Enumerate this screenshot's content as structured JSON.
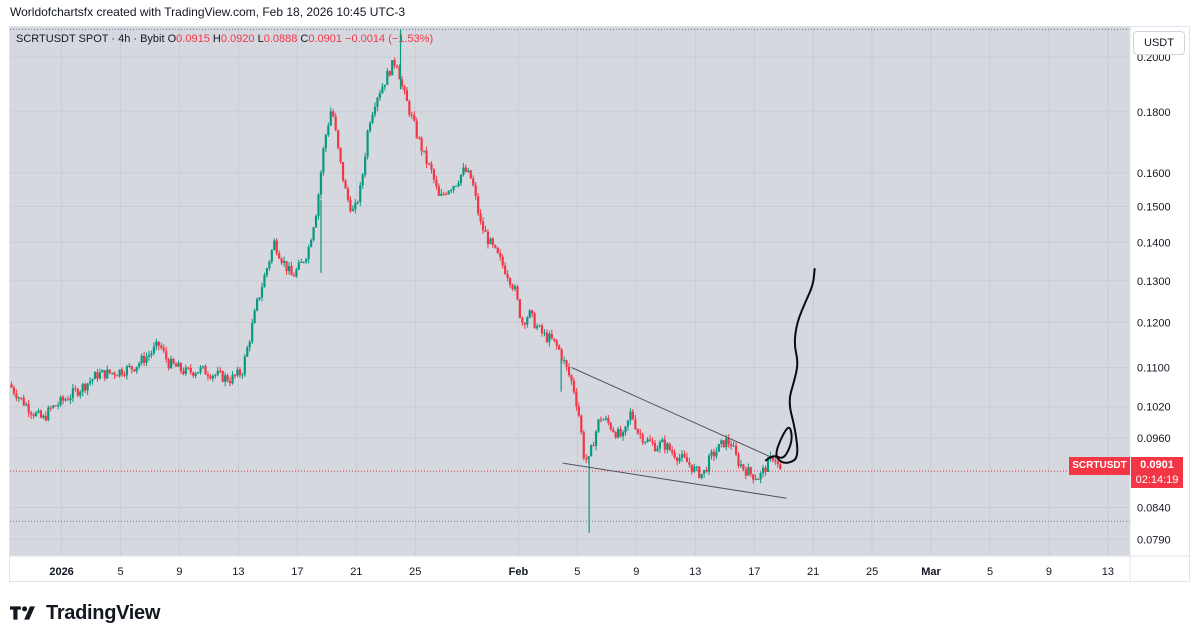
{
  "attribution": "Worldofchartsfx created with TradingView.com, Feb 18, 2026 10:45 UTC-3",
  "legend": {
    "symbol": "SCRTUSDT SPOT · 4h · Bybit",
    "o_label": "O",
    "o_value": "0.0915",
    "h_label": "H",
    "h_value": "0.0920",
    "l_label": "L",
    "l_value": "0.0888",
    "c_label": "C",
    "c_value": "0.0901",
    "change": "−0.0014 (−1.53%)"
  },
  "currency_button": "USDT",
  "last_price": {
    "symbol_tag": "SCRTUSDT",
    "price": "0.0901",
    "countdown": "02:14:19"
  },
  "logo": {
    "text": "TradingView",
    "icon": "tradingview-logo-icon"
  },
  "colors": {
    "up": "#089981",
    "down": "#f23645",
    "grid": "#e9ecf2",
    "text": "#131722"
  },
  "chart_data": {
    "type": "candlestick",
    "title": "SCRTUSDT SPOT · 4h · Bybit",
    "scale": "log",
    "ylim": [
      0.0765,
      0.212
    ],
    "y_ticks": [
      "0.2000",
      "0.1800",
      "0.1600",
      "0.1500",
      "0.1400",
      "0.1300",
      "0.1200",
      "0.1100",
      "0.1020",
      "0.0960",
      "0.0840",
      "0.0790"
    ],
    "x_range_days": [
      -3.5,
      72.5
    ],
    "x_ticks": [
      {
        "day": 0,
        "label": "2026"
      },
      {
        "day": 4,
        "label": "5"
      },
      {
        "day": 8,
        "label": "9"
      },
      {
        "day": 12,
        "label": "13"
      },
      {
        "day": 16,
        "label": "17"
      },
      {
        "day": 20,
        "label": "21"
      },
      {
        "day": 24,
        "label": "25"
      },
      {
        "day": 31,
        "label": "Feb"
      },
      {
        "day": 35,
        "label": "5"
      },
      {
        "day": 39,
        "label": "9"
      },
      {
        "day": 43,
        "label": "13"
      },
      {
        "day": 47,
        "label": "17"
      },
      {
        "day": 51,
        "label": "21"
      },
      {
        "day": 55,
        "label": "25"
      },
      {
        "day": 59,
        "label": "Mar"
      },
      {
        "day": 63,
        "label": "5"
      },
      {
        "day": 67,
        "label": "9"
      },
      {
        "day": 71,
        "label": "13"
      }
    ],
    "anchors": [
      [
        -3.4,
        0.1065
      ],
      [
        -2.6,
        0.1035
      ],
      [
        -1.8,
        0.101
      ],
      [
        -1.1,
        0.0995
      ],
      [
        -0.6,
        0.1015
      ],
      [
        0.4,
        0.1035
      ],
      [
        1.6,
        0.106
      ],
      [
        2.6,
        0.1085
      ],
      [
        3.8,
        0.109
      ],
      [
        5.0,
        0.11
      ],
      [
        6.0,
        0.1125
      ],
      [
        6.8,
        0.115
      ],
      [
        7.4,
        0.111
      ],
      [
        8.6,
        0.109
      ],
      [
        9.6,
        0.1095
      ],
      [
        10.6,
        0.1085
      ],
      [
        11.6,
        0.1075
      ],
      [
        12.4,
        0.109
      ],
      [
        12.9,
        0.116
      ],
      [
        13.4,
        0.124
      ],
      [
        14.0,
        0.132
      ],
      [
        14.6,
        0.14
      ],
      [
        15.2,
        0.135
      ],
      [
        15.8,
        0.131
      ],
      [
        16.4,
        0.134
      ],
      [
        16.9,
        0.138
      ],
      [
        17.5,
        0.15
      ],
      [
        18.0,
        0.17
      ],
      [
        18.5,
        0.182
      ],
      [
        19.0,
        0.165
      ],
      [
        19.5,
        0.153
      ],
      [
        20.0,
        0.148
      ],
      [
        20.5,
        0.156
      ],
      [
        21.0,
        0.176
      ],
      [
        21.5,
        0.185
      ],
      [
        22.0,
        0.19
      ],
      [
        22.5,
        0.196
      ],
      [
        22.9,
        0.199
      ],
      [
        23.3,
        0.188
      ],
      [
        23.8,
        0.18
      ],
      [
        24.3,
        0.172
      ],
      [
        24.8,
        0.165
      ],
      [
        25.3,
        0.16
      ],
      [
        25.8,
        0.152
      ],
      [
        26.3,
        0.155
      ],
      [
        26.9,
        0.157
      ],
      [
        27.5,
        0.161
      ],
      [
        28.0,
        0.158
      ],
      [
        28.6,
        0.145
      ],
      [
        29.2,
        0.14
      ],
      [
        29.8,
        0.136
      ],
      [
        30.4,
        0.132
      ],
      [
        30.9,
        0.128
      ],
      [
        31.4,
        0.12
      ],
      [
        31.9,
        0.122
      ],
      [
        32.4,
        0.119
      ],
      [
        32.9,
        0.117
      ],
      [
        33.4,
        0.116
      ],
      [
        33.9,
        0.114
      ],
      [
        34.4,
        0.11
      ],
      [
        34.9,
        0.106
      ],
      [
        35.3,
        0.1
      ],
      [
        35.6,
        0.093
      ],
      [
        35.9,
        0.0915
      ],
      [
        36.3,
        0.096
      ],
      [
        36.7,
        0.1
      ],
      [
        37.2,
        0.099
      ],
      [
        37.8,
        0.097
      ],
      [
        38.3,
        0.096
      ],
      [
        38.8,
        0.101
      ],
      [
        39.3,
        0.097
      ],
      [
        39.9,
        0.0955
      ],
      [
        40.5,
        0.0945
      ],
      [
        41.0,
        0.095
      ],
      [
        41.6,
        0.0935
      ],
      [
        42.1,
        0.0925
      ],
      [
        42.7,
        0.0915
      ],
      [
        43.2,
        0.09
      ],
      [
        43.7,
        0.0895
      ],
      [
        44.2,
        0.0925
      ],
      [
        44.7,
        0.094
      ],
      [
        45.2,
        0.0955
      ],
      [
        45.6,
        0.095
      ],
      [
        46.0,
        0.092
      ],
      [
        46.5,
        0.0905
      ],
      [
        47.0,
        0.0895
      ],
      [
        47.5,
        0.089
      ],
      [
        48.0,
        0.091
      ],
      [
        48.5,
        0.093
      ],
      [
        48.9,
        0.0901
      ]
    ],
    "wicks": [
      {
        "day": 35.8,
        "low": 0.08,
        "high": 0.092
      },
      {
        "day": 23.0,
        "low": 0.188,
        "high": 0.211
      },
      {
        "day": 33.9,
        "low": 0.105,
        "high": 0.112
      },
      {
        "day": 17.6,
        "low": 0.132,
        "high": 0.152
      }
    ],
    "wedge_lines": [
      {
        "from": {
          "day": 34.6,
          "price": 0.11
        },
        "to": {
          "day": 48.2,
          "price": 0.0925
        }
      },
      {
        "from": {
          "day": 34.0,
          "price": 0.0915
        },
        "to": {
          "day": 49.2,
          "price": 0.0855
        }
      }
    ],
    "hline_levels": [
      0.211,
      0.0901,
      0.0818
    ],
    "projection": [
      [
        47.8,
        0.092
      ],
      [
        48.3,
        0.093
      ],
      [
        48.9,
        0.0922
      ],
      [
        49.3,
        0.0935
      ],
      [
        49.6,
        0.096
      ],
      [
        49.4,
        0.0985
      ],
      [
        48.9,
        0.0965
      ],
      [
        48.4,
        0.093
      ],
      [
        48.8,
        0.0916
      ],
      [
        49.4,
        0.0915
      ],
      [
        50.0,
        0.0925
      ],
      [
        49.8,
        0.0975
      ],
      [
        49.3,
        0.103
      ],
      [
        49.7,
        0.107
      ],
      [
        50.0,
        0.111
      ],
      [
        49.7,
        0.115
      ],
      [
        49.9,
        0.12
      ],
      [
        50.5,
        0.125
      ],
      [
        51.0,
        0.129
      ],
      [
        51.1,
        0.133
      ]
    ]
  }
}
